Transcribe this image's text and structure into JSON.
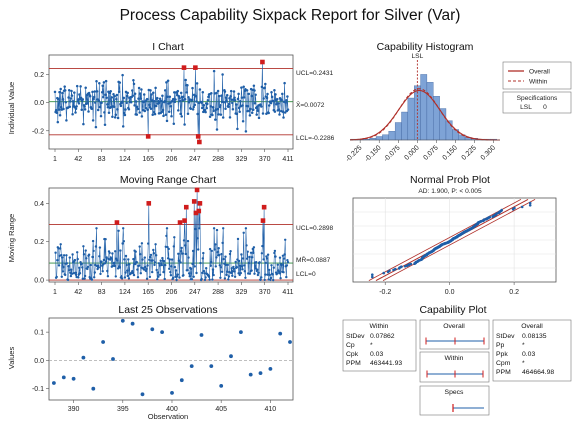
{
  "title": "Process Capability Sixpack Report for Silver (Var)",
  "colors": {
    "blue": "#1f5fa8",
    "red": "#d01c1c",
    "control": "#b0302a",
    "fill": "#7ea3d6"
  },
  "chart_data": [
    {
      "type": "line",
      "title": "I Chart",
      "ylabel": "Individual Value",
      "xticks": [
        "1",
        "42",
        "83",
        "124",
        "165",
        "206",
        "247",
        "288",
        "329",
        "370",
        "411"
      ],
      "yticks": [
        "-0.2",
        "0.0",
        "0.2"
      ],
      "xlim": [
        1,
        411
      ],
      "ylim": [
        -0.33,
        0.34
      ],
      "ucl": 0.2431,
      "center": 0.0072,
      "lcl": -0.2286,
      "ucl_label": "UCL=0.2431",
      "center_label": "X̄=0.0072",
      "lcl_label": "LCL=-0.2286",
      "out_of_control": [
        {
          "x": 165,
          "y": -0.24
        },
        {
          "x": 228,
          "y": 0.25
        },
        {
          "x": 248,
          "y": 0.25
        },
        {
          "x": 253,
          "y": -0.24
        },
        {
          "x": 255,
          "y": -0.28
        },
        {
          "x": 366,
          "y": 0.29
        }
      ]
    },
    {
      "type": "line",
      "title": "Moving Range Chart",
      "ylabel": "Moving Range",
      "xticks": [
        "1",
        "42",
        "83",
        "124",
        "165",
        "206",
        "247",
        "288",
        "329",
        "370",
        "411"
      ],
      "yticks": [
        "0.0",
        "0.2",
        "0.4"
      ],
      "xlim": [
        1,
        411
      ],
      "ylim": [
        -0.01,
        0.48
      ],
      "ucl": 0.2898,
      "center": 0.0887,
      "lcl": 0,
      "ucl_label": "UCL=0.2898",
      "center_label": "MR̄=0.0887",
      "lcl_label": "LCL=0",
      "out_of_control": [
        {
          "x": 110,
          "y": 0.3
        },
        {
          "x": 166,
          "y": 0.4
        },
        {
          "x": 221,
          "y": 0.3
        },
        {
          "x": 229,
          "y": 0.31
        },
        {
          "x": 232,
          "y": 0.38
        },
        {
          "x": 246,
          "y": 0.41
        },
        {
          "x": 249,
          "y": 0.35
        },
        {
          "x": 251,
          "y": 0.47
        },
        {
          "x": 254,
          "y": 0.36
        },
        {
          "x": 256,
          "y": 0.4
        },
        {
          "x": 367,
          "y": 0.31
        },
        {
          "x": 369,
          "y": 0.38
        }
      ]
    },
    {
      "type": "scatter",
      "title": "Last 25 Observations",
      "xlabel": "Observation",
      "ylabel": "Values",
      "xticks": [
        "390",
        "395",
        "400",
        "405",
        "410"
      ],
      "yticks": [
        "-0.1",
        "0.0",
        "0.1"
      ],
      "xlim": [
        387.5,
        412.3
      ],
      "ylim": [
        -0.14,
        0.15
      ],
      "center": 0,
      "x": [
        388,
        389,
        390,
        391,
        392,
        393,
        394,
        395,
        396,
        397,
        398,
        399,
        400,
        401,
        402,
        403,
        404,
        405,
        406,
        407,
        408,
        409,
        410,
        411,
        412
      ],
      "y": [
        -0.08,
        -0.06,
        -0.065,
        0.01,
        -0.1,
        0.065,
        0.005,
        0.14,
        0.13,
        -0.12,
        0.11,
        0.1,
        -0.115,
        -0.07,
        -0.02,
        0.09,
        -0.02,
        -0.09,
        0.015,
        0.1,
        -0.05,
        -0.045,
        -0.03,
        0.095,
        0.065
      ]
    },
    {
      "type": "bar",
      "title": "Capability Histogram",
      "xticks": [
        "-0.225",
        "-0.150",
        "-0.075",
        "0.000",
        "0.075",
        "0.150",
        "0.225",
        "0.300"
      ],
      "xlim": [
        -0.265,
        0.325
      ],
      "lsl": 0,
      "lsl_label": "LSL",
      "bin_edges": [
        -0.2625,
        -0.2375,
        -0.2125,
        -0.1875,
        -0.1625,
        -0.1375,
        -0.1125,
        -0.0875,
        -0.0625,
        -0.0375,
        -0.0125,
        0.0125,
        0.0375,
        0.0625,
        0.0875,
        0.1125,
        0.1375,
        0.1625,
        0.1875,
        0.2125,
        0.2375,
        0.2625,
        0.2875,
        0.3125
      ],
      "counts": [
        1,
        1,
        1,
        2,
        4,
        6,
        10,
        20,
        32,
        48,
        62,
        75,
        66,
        50,
        36,
        22,
        12,
        6,
        3,
        2,
        1,
        1,
        1
      ],
      "legend": {
        "entries": [
          "Overall",
          "Within"
        ],
        "spec_title": "Specifications",
        "spec_lsl": "LSL",
        "spec_value": "0"
      }
    },
    {
      "type": "scatter",
      "title": "Normal Prob Plot",
      "subtitle": "AD: 1.900, P: < 0.005",
      "xticks": [
        "-0.2",
        "0.0",
        "0.2"
      ],
      "xlim": [
        -0.3,
        0.33
      ]
    }
  ],
  "capability": {
    "title": "Capability Plot",
    "within": {
      "title": "Within",
      "rows": [
        [
          "StDev",
          "0.07862"
        ],
        [
          "Cp",
          "*"
        ],
        [
          "Cpk",
          "0.03"
        ],
        [
          "PPM",
          "463441.93"
        ]
      ]
    },
    "overall": {
      "title": "Overall",
      "rows": [
        [
          "StDev",
          "0.08135"
        ],
        [
          "Pp",
          "*"
        ],
        [
          "Ppk",
          "0.03"
        ],
        [
          "Cpm",
          "*"
        ],
        [
          "PPM",
          "464664.98"
        ]
      ]
    },
    "intervals": {
      "overall": "Overall",
      "within": "Within",
      "specs": "Specs"
    }
  }
}
